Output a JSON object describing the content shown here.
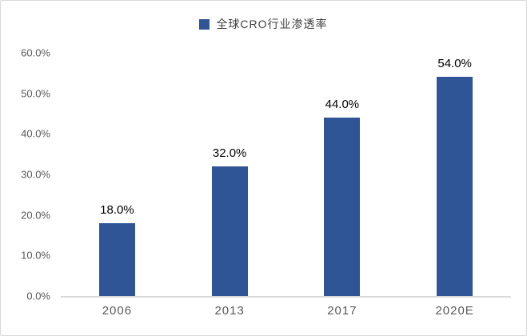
{
  "legend": {
    "label": "全球CRO行业渗透率"
  },
  "colors": {
    "bar": "#2F5597",
    "axis_line": "#D9D9D9",
    "tick_text": "#595959",
    "data_label_text": "#000000",
    "legend_text": "#404040",
    "frame_border": "#D9D9D9",
    "background": "#FFFFFF"
  },
  "y_axis": {
    "ticks": [
      "60.0%",
      "50.0%",
      "40.0%",
      "30.0%",
      "20.0%",
      "10.0%",
      "0.0%"
    ]
  },
  "chart_data": {
    "type": "bar",
    "title": "全球CRO行业渗透率",
    "categories": [
      "2006",
      "2013",
      "2017",
      "2020E"
    ],
    "values": [
      18.0,
      32.0,
      44.0,
      54.0
    ],
    "data_labels": [
      "18.0%",
      "32.0%",
      "44.0%",
      "54.0%"
    ],
    "xlabel": "",
    "ylabel": "",
    "ylim": [
      0,
      60
    ],
    "y_tick_step": 10,
    "y_tick_format": "percent",
    "grid": false,
    "legend_position": "top-center",
    "bar_color": "#2F5597"
  }
}
